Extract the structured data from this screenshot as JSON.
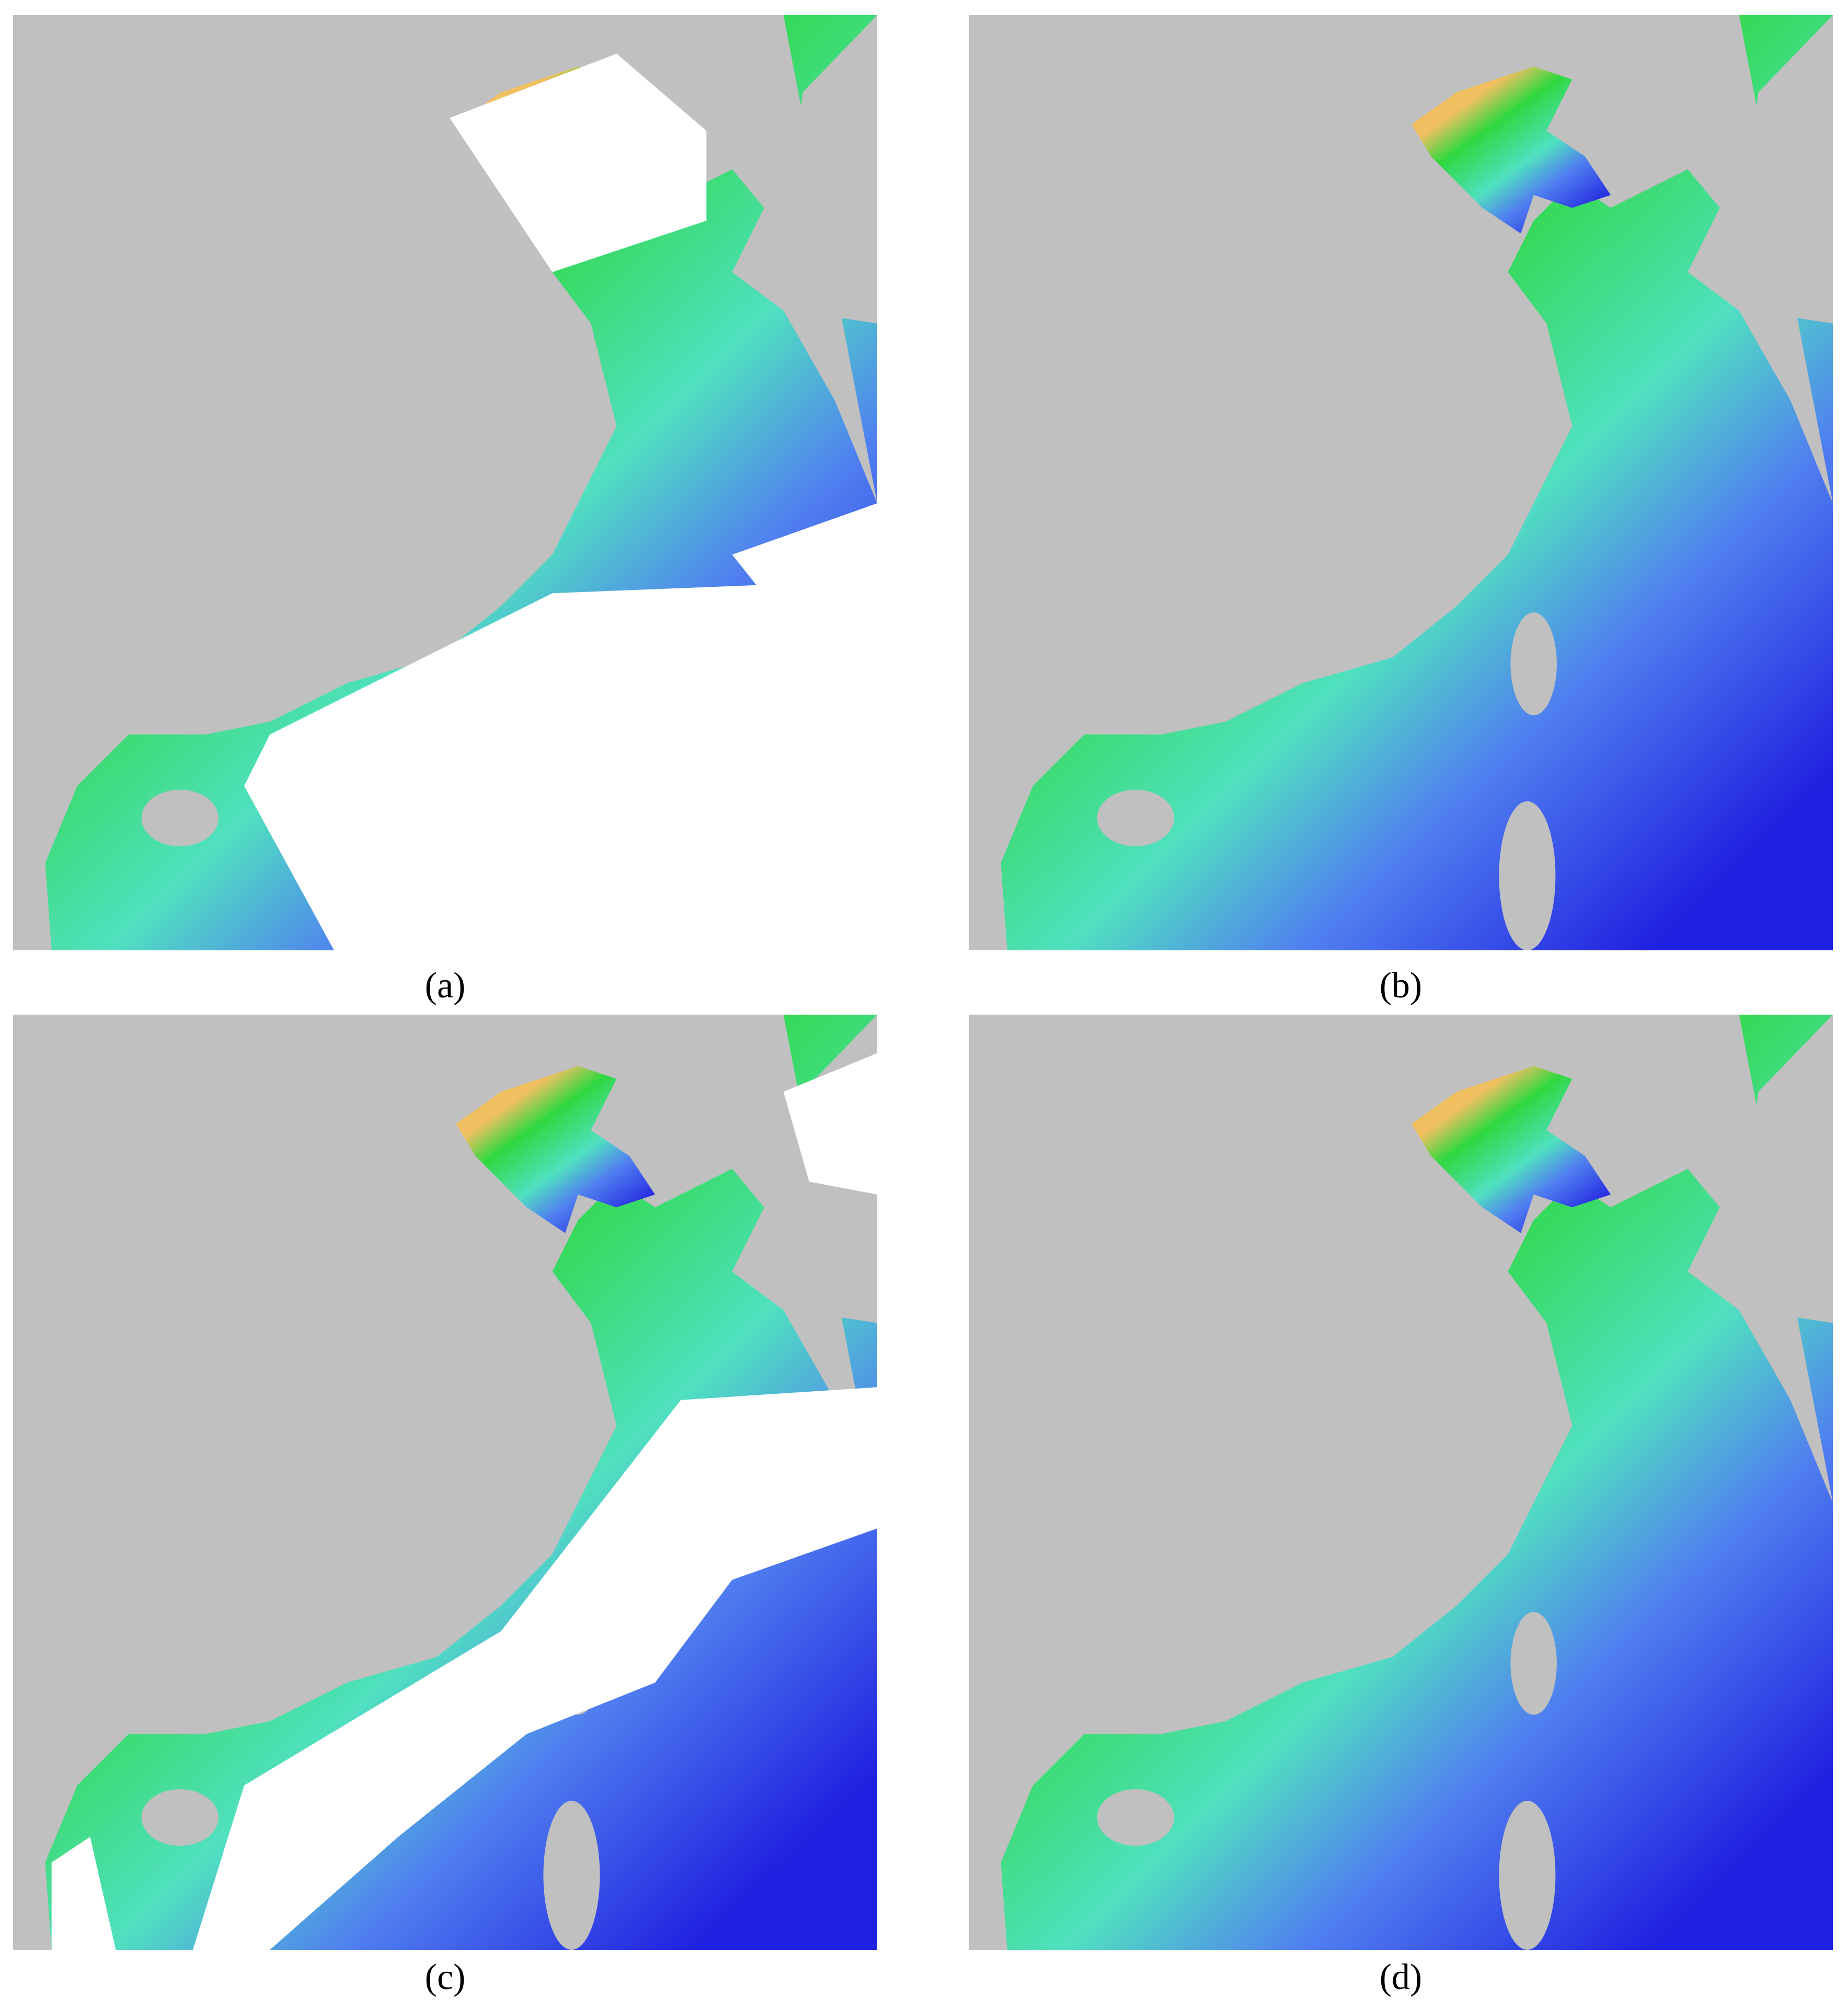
{
  "panels": [
    {
      "label": "(a)",
      "clouds": true
    },
    {
      "label": "(b)",
      "clouds": false
    },
    {
      "label": "(c)",
      "clouds": true
    },
    {
      "label": "(d)",
      "clouds": false
    }
  ]
}
